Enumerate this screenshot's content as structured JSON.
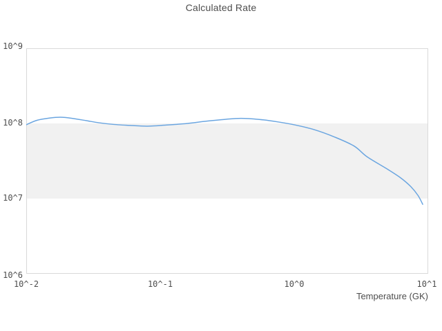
{
  "chart_data": {
    "type": "line",
    "title": "Calculated Rate",
    "xlabel": "Temperature (GK)",
    "ylabel": "",
    "x_scale": "log",
    "y_scale": "log",
    "xlim": [
      0.01,
      10
    ],
    "ylim": [
      1000000.0,
      1000000000.0
    ],
    "grid": false,
    "legend": false,
    "x_ticks": [
      {
        "value": 0.01,
        "label": "10^-2"
      },
      {
        "value": 0.1,
        "label": "10^-1"
      },
      {
        "value": 1,
        "label": "10^0"
      },
      {
        "value": 10,
        "label": "10^1"
      }
    ],
    "y_ticks": [
      {
        "value": 1000000000.0,
        "label": "10^9"
      },
      {
        "value": 100000000.0,
        "label": "10^8"
      },
      {
        "value": 10000000.0,
        "label": "10^7"
      },
      {
        "value": 1000000.0,
        "label": "10^6"
      }
    ],
    "band": {
      "name": "highlight-band",
      "from": 10000000.0,
      "to": 100000000.0,
      "color": "#f1f1f1"
    },
    "series": [
      {
        "name": "calculated-rate",
        "color": "#6aa5e0",
        "points": [
          [
            0.01,
            96000000.0
          ],
          [
            0.012,
            110000000.0
          ],
          [
            0.015,
            118000000.0
          ],
          [
            0.018,
            121000000.0
          ],
          [
            0.022,
            117000000.0
          ],
          [
            0.028,
            109000000.0
          ],
          [
            0.035,
            102000000.0
          ],
          [
            0.045,
            97000000.0
          ],
          [
            0.06,
            94000000.0
          ],
          [
            0.08,
            92000000.0
          ],
          [
            0.11,
            95000000.0
          ],
          [
            0.16,
            100000000.0
          ],
          [
            0.22,
            107000000.0
          ],
          [
            0.3,
            113000000.0
          ],
          [
            0.4,
            117000000.0
          ],
          [
            0.55,
            113000000.0
          ],
          [
            0.75,
            105000000.0
          ],
          [
            1.0,
            96000000.0
          ],
          [
            1.4,
            83000000.0
          ],
          [
            2.0,
            66000000.0
          ],
          [
            2.8,
            50000000.0
          ],
          [
            3.5,
            36000000.0
          ],
          [
            4.9,
            25000000.0
          ],
          [
            6.2,
            19000000.0
          ],
          [
            7.4,
            14500000.0
          ],
          [
            8.4,
            11000000.0
          ],
          [
            9.1,
            8400000.0
          ]
        ]
      }
    ]
  },
  "colors": {
    "text": "#4d4d4d",
    "border": "#d9d9d9",
    "band": "#f1f1f1",
    "line": "#6aa5e0",
    "background": "#ffffff"
  }
}
